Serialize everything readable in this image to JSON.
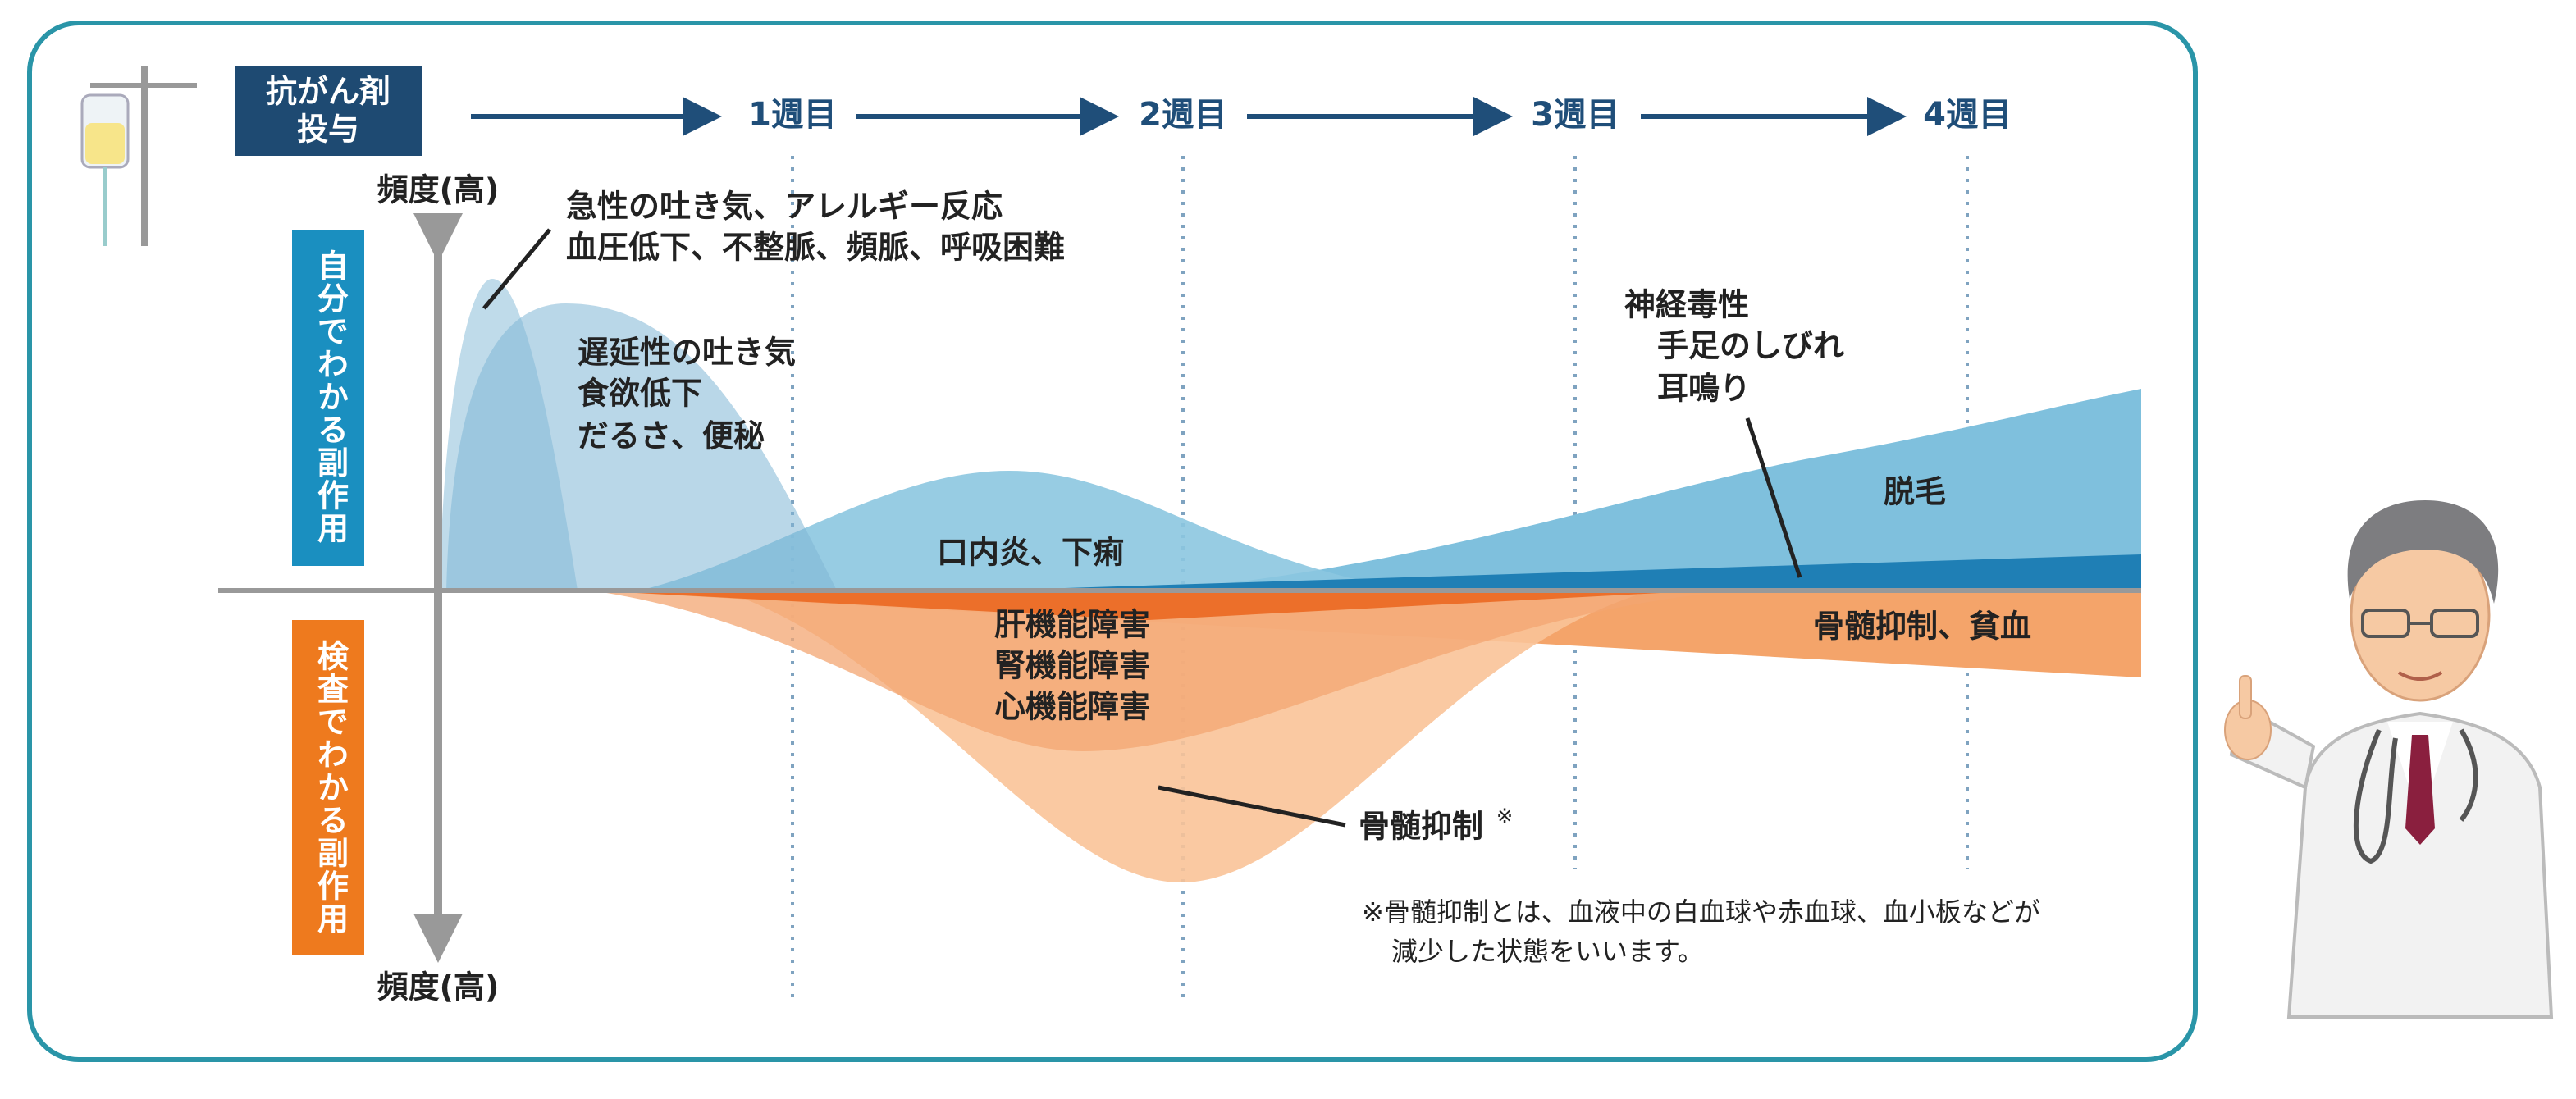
{
  "header": {
    "drug_box": [
      "抗がん剤",
      "投与"
    ],
    "weeks": [
      "1週目",
      "2週目",
      "3週目",
      "4週目"
    ]
  },
  "axis": {
    "top_label": "頻度(高)",
    "bottom_label": "頻度(高)",
    "self_noticed": "自分でわかる副作用",
    "lab_detected": "検査でわかる副作用"
  },
  "annotations": {
    "acute": [
      "急性の吐き気、アレルギー反応",
      "血圧低下、不整脈、頻脈、呼吸困難"
    ],
    "delayed": [
      "遅延性の吐き気",
      "食欲低下",
      "だるさ、便秘"
    ],
    "mouth": "口内炎、下痢",
    "neuro": [
      "神経毒性",
      "手足のしびれ",
      "耳鳴り"
    ],
    "hair": "脱毛",
    "organ": [
      "肝機能障害",
      "腎機能障害",
      "心機能障害"
    ],
    "anemia": "骨髄抑制、貧血",
    "bone_marrow": "骨髄抑制",
    "bone_marrow_mark": "※"
  },
  "note": [
    "※骨髄抑制とは、血液中の白血球や赤血球、血小板などが",
    "減少した状態をいいます。"
  ]
}
